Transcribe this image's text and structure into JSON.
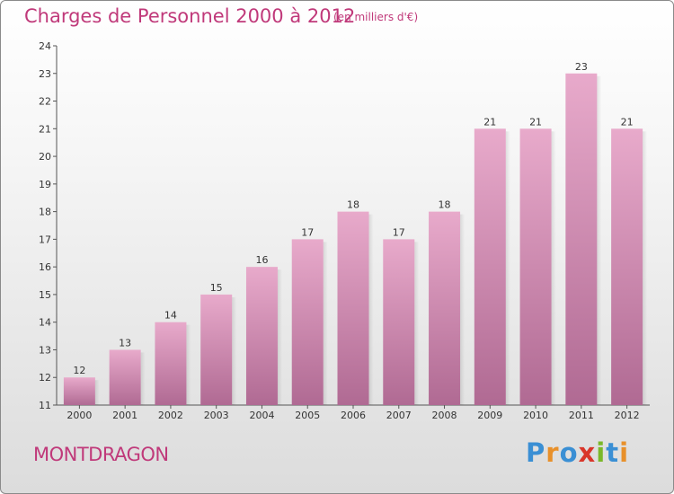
{
  "header": {
    "title": "Charges de Personnel 2000 à 2012",
    "subtitle": "(en milliers d'€)"
  },
  "footer": {
    "city": "MONTDRAGON",
    "logo_text": "Proxiti"
  },
  "colors": {
    "title": "#c0397a",
    "bar_top": "#e8aacb",
    "bar_bottom": "#b06a93",
    "axis": "#555555",
    "logo_letters": [
      "#3a8fd4",
      "#e8902a",
      "#3a8fd4",
      "#d9362a",
      "#7ab829",
      "#3a8fd4",
      "#e8902a"
    ]
  },
  "chart_data": {
    "type": "bar",
    "title": "Charges de Personnel 2000 à 2012",
    "subtitle": "(en milliers d'€)",
    "categories": [
      "2000",
      "2001",
      "2002",
      "2003",
      "2004",
      "2005",
      "2006",
      "2007",
      "2008",
      "2009",
      "2010",
      "2011",
      "2012"
    ],
    "values": [
      12,
      13,
      14,
      15,
      16,
      17,
      18,
      17,
      18,
      21,
      21,
      23,
      21
    ],
    "data_labels": [
      "12",
      "13",
      "14",
      "15",
      "16",
      "17",
      "18",
      "17",
      "18",
      "21",
      "21",
      "23",
      "21"
    ],
    "ylim": [
      11,
      24
    ],
    "yticks": [
      11,
      12,
      13,
      14,
      15,
      16,
      17,
      18,
      19,
      20,
      21,
      22,
      23,
      24
    ],
    "grid": false,
    "legend": "none"
  }
}
